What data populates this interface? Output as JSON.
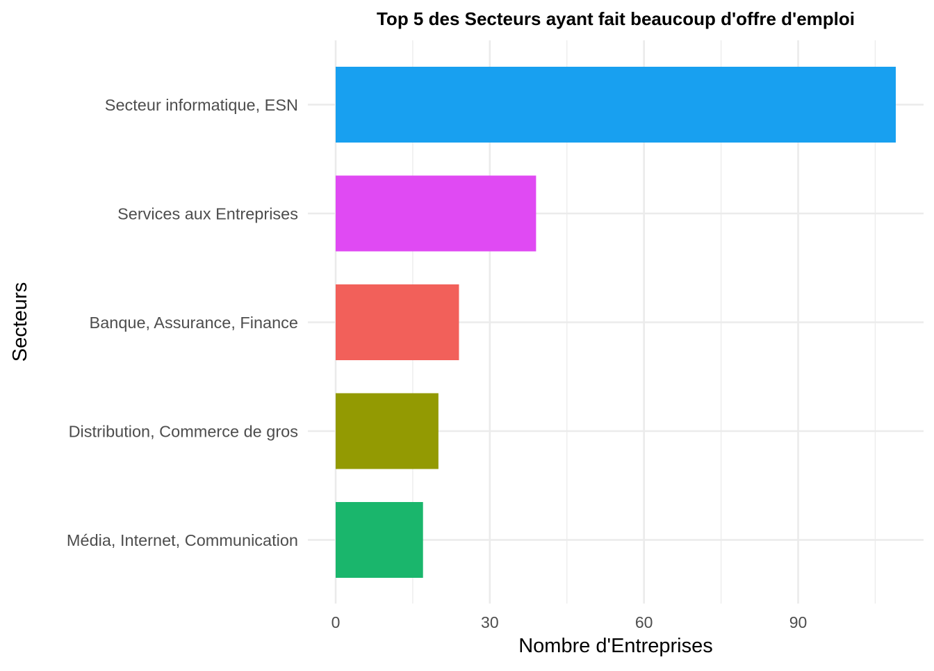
{
  "chart_data": {
    "type": "bar",
    "orientation": "horizontal",
    "title": "Top 5 des Secteurs ayant fait beaucoup d'offre d'emploi",
    "xlabel": "Nombre d'Entreprises",
    "ylabel": "Secteurs",
    "categories": [
      "Secteur informatique, ESN",
      "Services aux Entreprises",
      "Banque, Assurance, Finance",
      "Distribution, Commerce de gros",
      "Média, Internet, Communication"
    ],
    "values": [
      109,
      39,
      24,
      20,
      17
    ],
    "colors": [
      "#18A0F0",
      "#E04AF3",
      "#F2605A",
      "#939A02",
      "#1AB66C"
    ],
    "xlim": [
      0,
      114
    ],
    "x_ticks": [
      0,
      30,
      60,
      90
    ],
    "x_tick_labels": [
      "0",
      "30",
      "60",
      "90"
    ],
    "grid": true,
    "legend": "none"
  }
}
